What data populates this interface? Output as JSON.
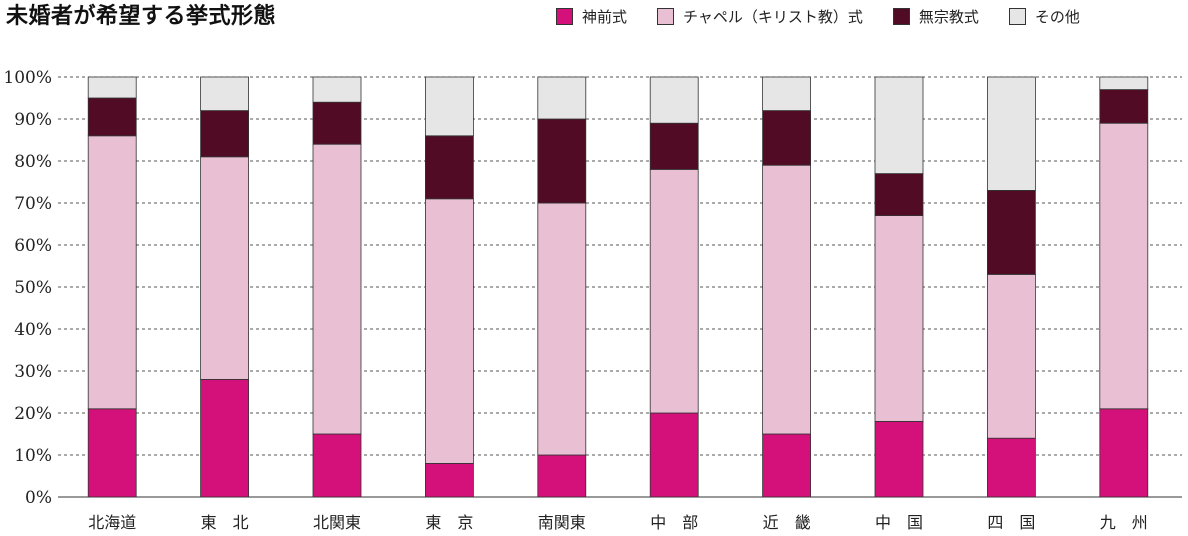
{
  "title": "未婚者が希望する挙式形態",
  "chart_data": {
    "type": "bar",
    "stacked": true,
    "categories": [
      "北海道",
      "東　北",
      "北関東",
      "東　京",
      "南関東",
      "中　部",
      "近　畿",
      "中　国",
      "四　国",
      "九　州"
    ],
    "series": [
      {
        "name": "神前式",
        "color": "#d4117a",
        "values": [
          21,
          28,
          15,
          8,
          10,
          20,
          15,
          18,
          14,
          21
        ]
      },
      {
        "name": "チャペル（キリスト教）式",
        "color": "#e9bfd3",
        "values": [
          65,
          53,
          69,
          63,
          60,
          58,
          64,
          49,
          39,
          68
        ]
      },
      {
        "name": "無宗教式",
        "color": "#520b25",
        "values": [
          9,
          11,
          10,
          15,
          20,
          11,
          13,
          10,
          20,
          8
        ]
      },
      {
        "name": "その他",
        "color": "#e6e6e6",
        "values": [
          5,
          8,
          6,
          14,
          10,
          11,
          8,
          23,
          27,
          3
        ]
      }
    ],
    "ylim": [
      0,
      100
    ],
    "yticks": [
      "0%",
      "10%",
      "20%",
      "30%",
      "40%",
      "50%",
      "60%",
      "70%",
      "80%",
      "90%",
      "100%"
    ],
    "grid": true,
    "legend_position": "top-right"
  }
}
